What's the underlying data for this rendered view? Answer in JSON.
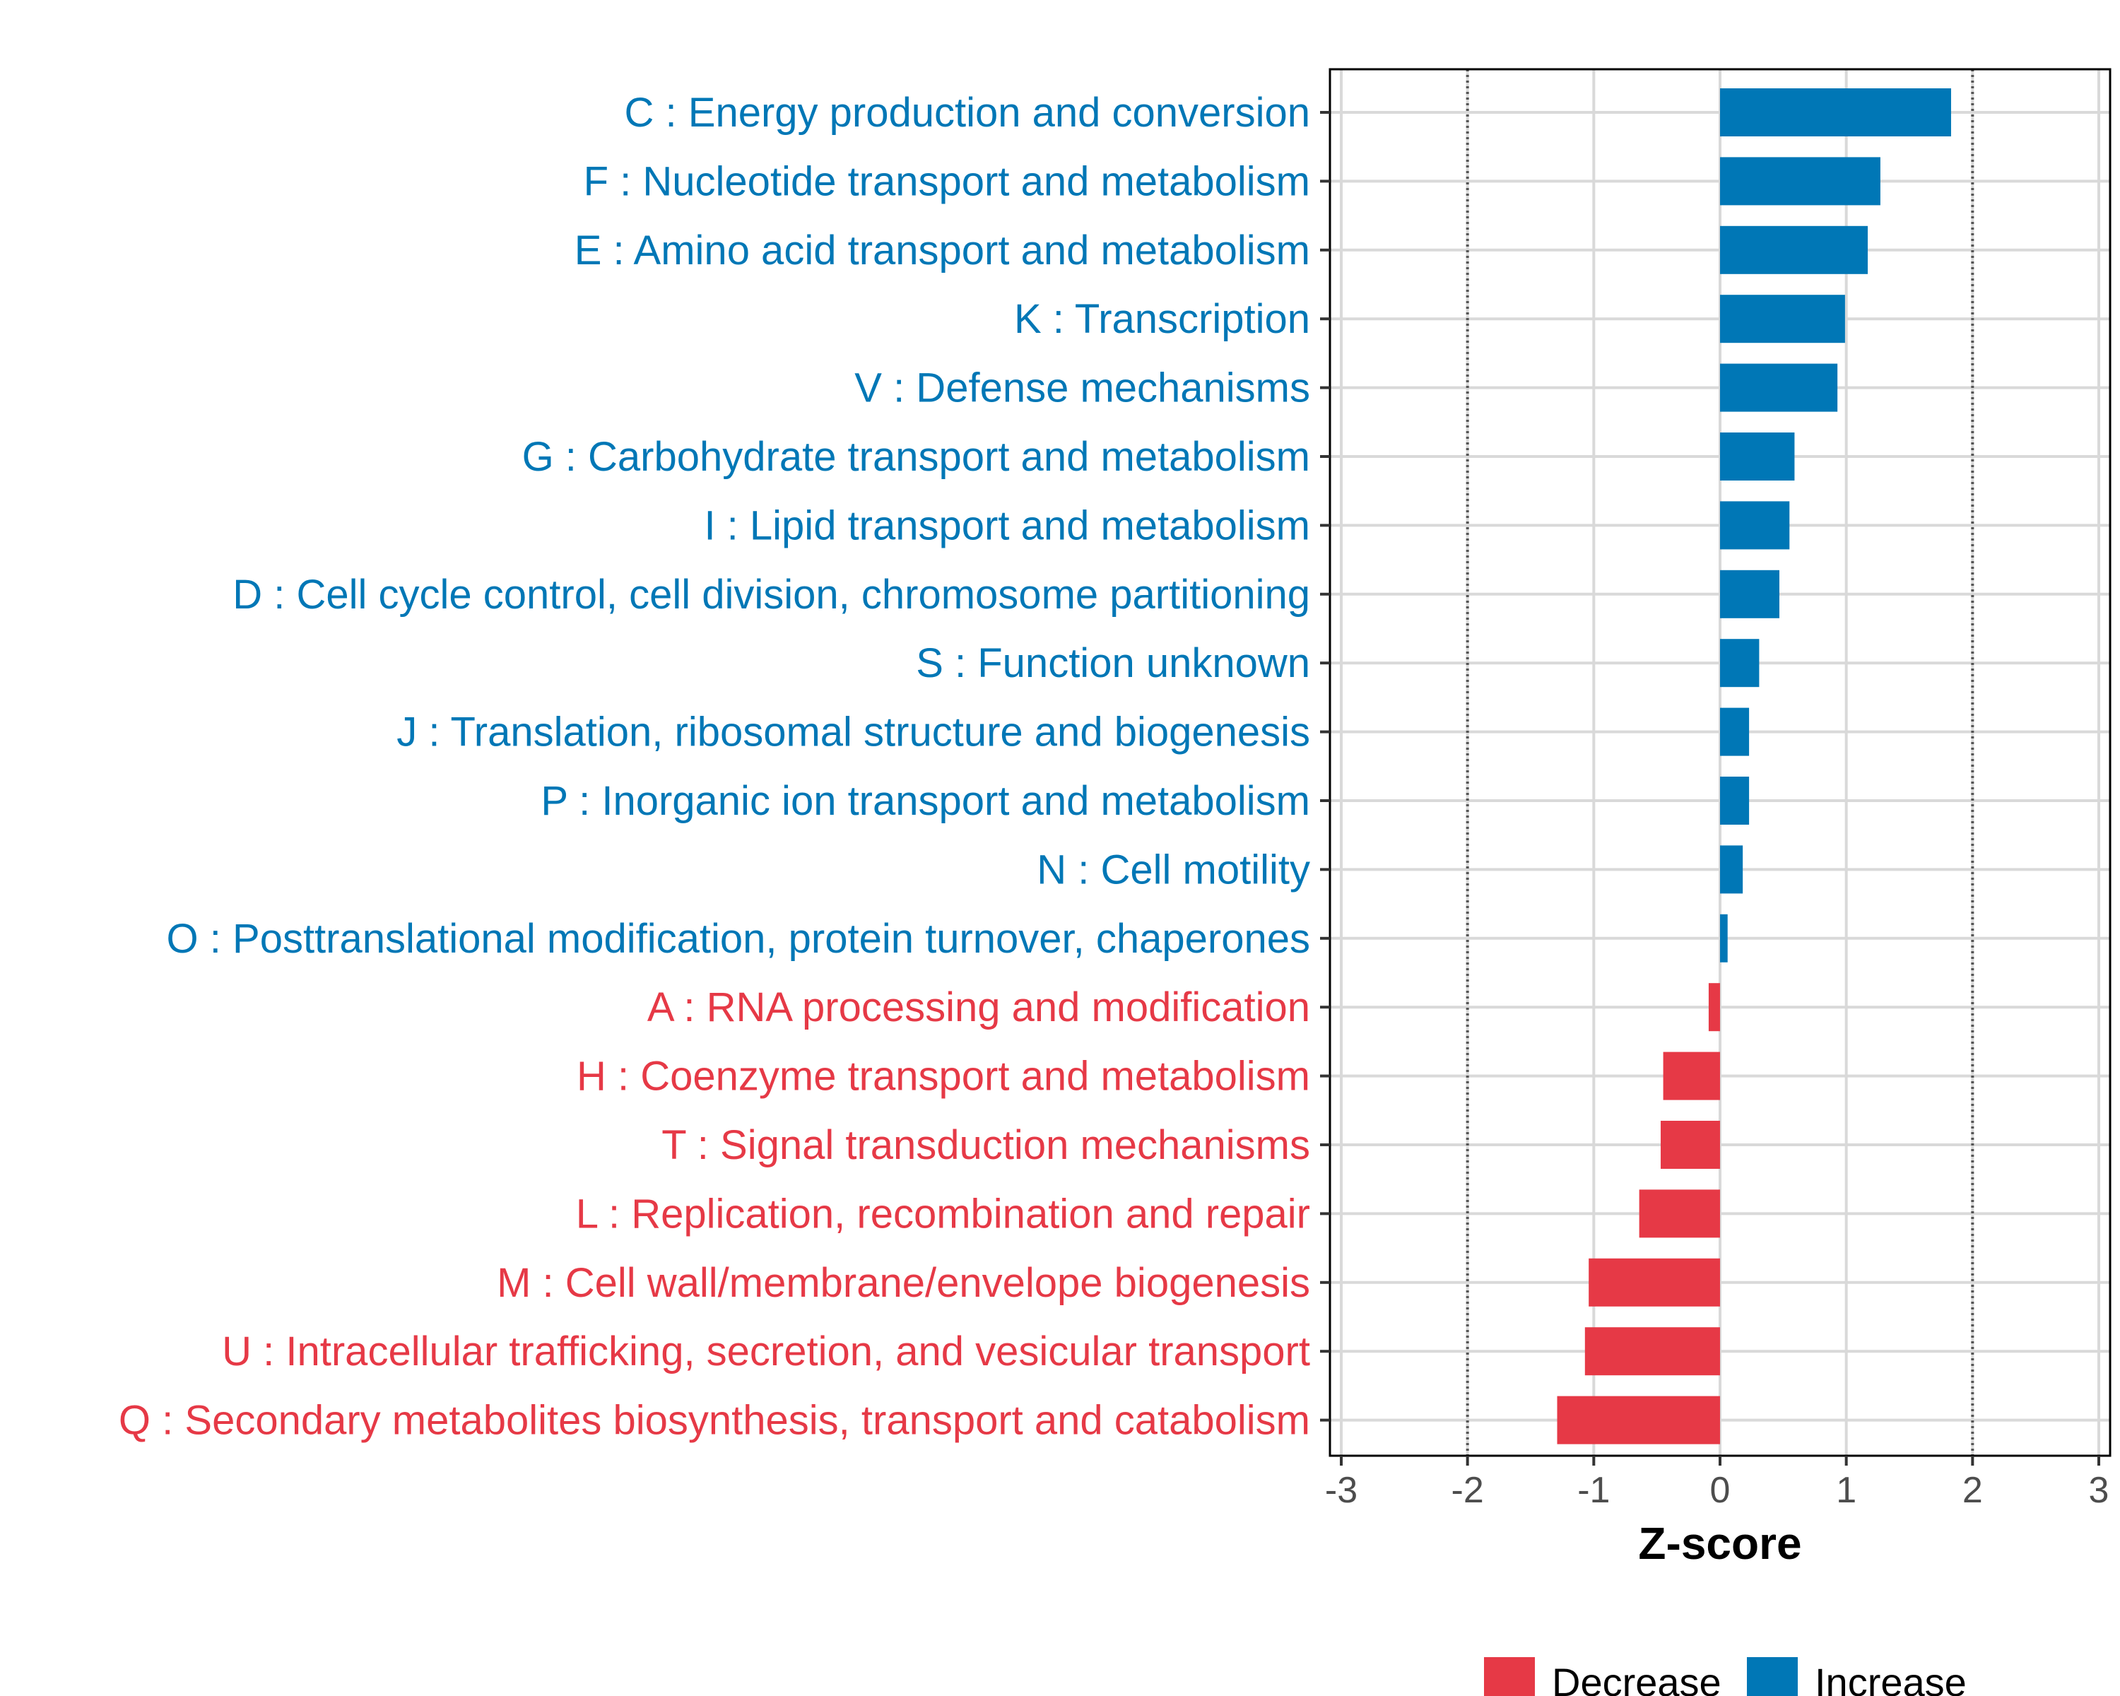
{
  "chart_data": {
    "type": "bar",
    "orientation": "horizontal",
    "title": "",
    "xlabel": "Z-score",
    "ylabel": "",
    "xlim": [
      -3,
      3
    ],
    "xticks": [
      -3,
      -2,
      -1,
      0,
      1,
      2,
      3
    ],
    "threshold_lines": [
      -2,
      2
    ],
    "grid": true,
    "legend_position": "bottom",
    "categories": [
      "C : Energy production and conversion",
      "F : Nucleotide transport and metabolism",
      "E : Amino acid transport and metabolism",
      "K : Transcription",
      "V : Defense mechanisms",
      "G : Carbohydrate transport and metabolism",
      "I : Lipid transport and metabolism",
      "D : Cell cycle control, cell division, chromosome partitioning",
      "S : Function unknown",
      "J : Translation, ribosomal structure and biogenesis",
      "P : Inorganic ion transport and metabolism",
      "N : Cell motility",
      "O : Posttranslational modification, protein turnover, chaperones",
      "A : RNA processing and modification",
      "H : Coenzyme transport and metabolism",
      "T : Signal transduction mechanisms",
      "L : Replication, recombination and repair",
      "M : Cell wall/membrane/envelope biogenesis",
      "U : Intracellular trafficking, secretion, and vesicular transport",
      "Q : Secondary metabolites biosynthesis, transport and catabolism"
    ],
    "values": [
      1.83,
      1.27,
      1.17,
      0.99,
      0.93,
      0.59,
      0.55,
      0.47,
      0.31,
      0.23,
      0.23,
      0.18,
      0.06,
      -0.09,
      -0.45,
      -0.47,
      -0.64,
      -1.04,
      -1.07,
      -1.29
    ],
    "groups": [
      "Increase",
      "Increase",
      "Increase",
      "Increase",
      "Increase",
      "Increase",
      "Increase",
      "Increase",
      "Increase",
      "Increase",
      "Increase",
      "Increase",
      "Increase",
      "Decrease",
      "Decrease",
      "Decrease",
      "Decrease",
      "Decrease",
      "Decrease",
      "Decrease"
    ],
    "legend": [
      {
        "name": "Decrease",
        "color": "#e63946"
      },
      {
        "name": "Increase",
        "color": "#0077b6"
      }
    ]
  }
}
